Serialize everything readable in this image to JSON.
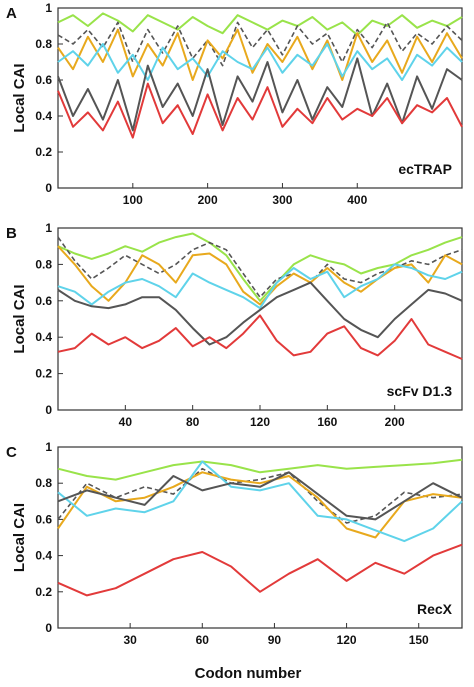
{
  "figure": {
    "ylabel": "Local CAI",
    "xlabel": "Codon number"
  },
  "chart_data": [
    {
      "type": "line",
      "panel": "A",
      "name": "ecTRAP",
      "xlim": [
        0,
        540
      ],
      "ylim": [
        0,
        1
      ],
      "xticks": [
        100,
        200,
        300,
        400
      ],
      "yticks": [
        0,
        0.2,
        0.4,
        0.6,
        0.8,
        1
      ],
      "ytick_labels": [
        "0",
        "0.2",
        "0.4",
        "0.6",
        "0.8",
        "1"
      ],
      "grid": false,
      "series": [
        {
          "color": "#99e34a",
          "dash": false,
          "x": [
            0,
            20,
            40,
            60,
            80,
            100,
            120,
            140,
            160,
            180,
            200,
            220,
            240,
            260,
            280,
            300,
            320,
            340,
            360,
            380,
            400,
            420,
            440,
            460,
            480,
            500,
            520,
            540
          ],
          "y": [
            0.92,
            0.96,
            0.9,
            0.97,
            0.93,
            0.87,
            0.96,
            0.92,
            0.88,
            0.95,
            0.9,
            0.86,
            0.96,
            0.92,
            0.88,
            0.93,
            0.9,
            0.95,
            0.88,
            0.92,
            0.85,
            0.93,
            0.9,
            0.96,
            0.89,
            0.93,
            0.9,
            0.95
          ]
        },
        {
          "color": "#555555",
          "dash": true,
          "x": [
            0,
            20,
            40,
            60,
            80,
            100,
            120,
            140,
            160,
            180,
            200,
            220,
            240,
            260,
            280,
            300,
            320,
            340,
            360,
            380,
            400,
            420,
            440,
            460,
            480,
            500,
            520,
            540
          ],
          "y": [
            0.85,
            0.8,
            0.88,
            0.78,
            0.92,
            0.7,
            0.88,
            0.75,
            0.9,
            0.72,
            0.82,
            0.68,
            0.92,
            0.78,
            0.88,
            0.74,
            0.9,
            0.8,
            0.86,
            0.7,
            0.88,
            0.78,
            0.92,
            0.76,
            0.86,
            0.8,
            0.9,
            0.82
          ]
        },
        {
          "color": "#e8a91d",
          "dash": false,
          "x": [
            0,
            20,
            40,
            60,
            80,
            100,
            120,
            140,
            160,
            180,
            200,
            220,
            240,
            260,
            280,
            300,
            320,
            340,
            360,
            380,
            400,
            420,
            440,
            460,
            480,
            500,
            520,
            540
          ],
          "y": [
            0.78,
            0.66,
            0.84,
            0.7,
            0.88,
            0.62,
            0.8,
            0.68,
            0.86,
            0.6,
            0.82,
            0.72,
            0.88,
            0.64,
            0.8,
            0.7,
            0.84,
            0.66,
            0.82,
            0.6,
            0.86,
            0.7,
            0.82,
            0.64,
            0.84,
            0.7,
            0.86,
            0.72
          ]
        },
        {
          "color": "#5fd3ea",
          "dash": false,
          "x": [
            0,
            20,
            40,
            60,
            80,
            100,
            120,
            140,
            160,
            180,
            200,
            220,
            240,
            260,
            280,
            300,
            320,
            340,
            360,
            380,
            400,
            420,
            440,
            460,
            480,
            500,
            520,
            540
          ],
          "y": [
            0.7,
            0.76,
            0.68,
            0.8,
            0.64,
            0.74,
            0.6,
            0.78,
            0.66,
            0.72,
            0.62,
            0.76,
            0.7,
            0.66,
            0.78,
            0.64,
            0.74,
            0.68,
            0.8,
            0.62,
            0.76,
            0.66,
            0.72,
            0.6,
            0.74,
            0.68,
            0.78,
            0.7
          ]
        },
        {
          "color": "#555555",
          "dash": false,
          "x": [
            0,
            20,
            40,
            60,
            80,
            100,
            120,
            140,
            160,
            180,
            200,
            220,
            240,
            260,
            280,
            300,
            320,
            340,
            360,
            380,
            400,
            420,
            440,
            460,
            480,
            500,
            520,
            540
          ],
          "y": [
            0.62,
            0.4,
            0.55,
            0.38,
            0.6,
            0.32,
            0.68,
            0.45,
            0.58,
            0.4,
            0.66,
            0.35,
            0.62,
            0.48,
            0.7,
            0.42,
            0.6,
            0.38,
            0.56,
            0.45,
            0.72,
            0.4,
            0.58,
            0.36,
            0.62,
            0.44,
            0.66,
            0.6
          ]
        },
        {
          "color": "#e23a3a",
          "dash": false,
          "x": [
            0,
            20,
            40,
            60,
            80,
            100,
            120,
            140,
            160,
            180,
            200,
            220,
            240,
            260,
            280,
            300,
            320,
            340,
            360,
            380,
            400,
            420,
            440,
            460,
            480,
            500,
            520,
            540
          ],
          "y": [
            0.54,
            0.34,
            0.42,
            0.32,
            0.48,
            0.28,
            0.58,
            0.36,
            0.46,
            0.3,
            0.52,
            0.32,
            0.5,
            0.38,
            0.56,
            0.34,
            0.44,
            0.36,
            0.5,
            0.38,
            0.44,
            0.4,
            0.5,
            0.36,
            0.46,
            0.42,
            0.5,
            0.34
          ]
        }
      ]
    },
    {
      "type": "line",
      "panel": "B",
      "name": "scFv D1.3",
      "xlim": [
        0,
        240
      ],
      "ylim": [
        0,
        1
      ],
      "xticks": [
        40,
        80,
        120,
        160,
        200
      ],
      "yticks": [
        0,
        0.2,
        0.4,
        0.6,
        0.8,
        1
      ],
      "ytick_labels": [
        "0",
        "0.2",
        "0.4",
        "0.6",
        "0.8",
        "1"
      ],
      "grid": false,
      "series": [
        {
          "color": "#99e34a",
          "dash": false,
          "x": [
            0,
            10,
            20,
            30,
            40,
            50,
            60,
            70,
            80,
            90,
            100,
            110,
            120,
            130,
            140,
            150,
            160,
            170,
            180,
            190,
            200,
            210,
            220,
            230,
            240
          ],
          "y": [
            0.9,
            0.86,
            0.83,
            0.86,
            0.9,
            0.87,
            0.92,
            0.95,
            0.97,
            0.92,
            0.85,
            0.72,
            0.6,
            0.7,
            0.8,
            0.85,
            0.82,
            0.8,
            0.75,
            0.78,
            0.8,
            0.85,
            0.88,
            0.92,
            0.95
          ]
        },
        {
          "color": "#555555",
          "dash": true,
          "x": [
            0,
            10,
            20,
            30,
            40,
            50,
            60,
            70,
            80,
            90,
            100,
            110,
            120,
            130,
            140,
            150,
            160,
            170,
            180,
            190,
            200,
            210,
            220,
            230,
            240
          ],
          "y": [
            0.95,
            0.82,
            0.72,
            0.78,
            0.85,
            0.8,
            0.75,
            0.8,
            0.88,
            0.92,
            0.88,
            0.75,
            0.62,
            0.72,
            0.75,
            0.7,
            0.8,
            0.72,
            0.7,
            0.75,
            0.78,
            0.82,
            0.8,
            0.85,
            0.88
          ]
        },
        {
          "color": "#e8a91d",
          "dash": false,
          "x": [
            0,
            10,
            20,
            30,
            40,
            50,
            60,
            70,
            80,
            90,
            100,
            110,
            120,
            130,
            140,
            150,
            160,
            170,
            180,
            190,
            200,
            210,
            220,
            230,
            240
          ],
          "y": [
            0.9,
            0.8,
            0.68,
            0.6,
            0.7,
            0.85,
            0.8,
            0.7,
            0.85,
            0.86,
            0.8,
            0.65,
            0.58,
            0.68,
            0.75,
            0.7,
            0.78,
            0.7,
            0.65,
            0.72,
            0.78,
            0.8,
            0.7,
            0.85,
            0.8
          ]
        },
        {
          "color": "#5fd3ea",
          "dash": false,
          "x": [
            0,
            10,
            20,
            30,
            40,
            50,
            60,
            70,
            80,
            90,
            100,
            110,
            120,
            130,
            140,
            150,
            160,
            170,
            180,
            190,
            200,
            210,
            220,
            230,
            240
          ],
          "y": [
            0.68,
            0.65,
            0.58,
            0.65,
            0.7,
            0.72,
            0.68,
            0.62,
            0.75,
            0.7,
            0.66,
            0.62,
            0.56,
            0.7,
            0.78,
            0.72,
            0.76,
            0.62,
            0.68,
            0.72,
            0.8,
            0.78,
            0.74,
            0.72,
            0.76
          ]
        },
        {
          "color": "#555555",
          "dash": false,
          "x": [
            0,
            10,
            20,
            30,
            40,
            50,
            60,
            70,
            80,
            90,
            100,
            110,
            120,
            130,
            140,
            150,
            160,
            170,
            180,
            190,
            200,
            210,
            220,
            230,
            240
          ],
          "y": [
            0.66,
            0.6,
            0.57,
            0.56,
            0.58,
            0.62,
            0.62,
            0.55,
            0.45,
            0.36,
            0.4,
            0.48,
            0.55,
            0.62,
            0.66,
            0.7,
            0.6,
            0.5,
            0.44,
            0.4,
            0.5,
            0.58,
            0.66,
            0.64,
            0.6
          ]
        },
        {
          "color": "#e23a3a",
          "dash": false,
          "x": [
            0,
            10,
            20,
            30,
            40,
            50,
            60,
            70,
            80,
            90,
            100,
            110,
            120,
            130,
            140,
            150,
            160,
            170,
            180,
            190,
            200,
            210,
            220,
            230,
            240
          ],
          "y": [
            0.32,
            0.34,
            0.42,
            0.36,
            0.4,
            0.34,
            0.38,
            0.45,
            0.35,
            0.4,
            0.34,
            0.42,
            0.52,
            0.38,
            0.3,
            0.32,
            0.42,
            0.46,
            0.34,
            0.3,
            0.38,
            0.5,
            0.36,
            0.32,
            0.28
          ]
        }
      ]
    },
    {
      "type": "line",
      "panel": "C",
      "name": "RecX",
      "xlim": [
        0,
        168
      ],
      "ylim": [
        0,
        1
      ],
      "xticks": [
        30,
        60,
        90,
        120,
        150
      ],
      "yticks": [
        0,
        0.2,
        0.4,
        0.6,
        0.8,
        1
      ],
      "ytick_labels": [
        "0",
        "0.2",
        "0.4",
        "0.6",
        "0.8",
        "1"
      ],
      "grid": false,
      "series": [
        {
          "color": "#99e34a",
          "dash": false,
          "x": [
            0,
            12,
            24,
            36,
            48,
            60,
            72,
            84,
            96,
            108,
            120,
            132,
            144,
            156,
            168
          ],
          "y": [
            0.88,
            0.84,
            0.82,
            0.86,
            0.9,
            0.92,
            0.9,
            0.86,
            0.88,
            0.9,
            0.88,
            0.89,
            0.9,
            0.91,
            0.93
          ]
        },
        {
          "color": "#555555",
          "dash": true,
          "x": [
            0,
            12,
            24,
            36,
            48,
            60,
            72,
            84,
            96,
            108,
            120,
            132,
            144,
            156,
            168
          ],
          "y": [
            0.6,
            0.8,
            0.72,
            0.78,
            0.74,
            0.88,
            0.8,
            0.82,
            0.86,
            0.7,
            0.58,
            0.62,
            0.75,
            0.72,
            0.74
          ]
        },
        {
          "color": "#e8a91d",
          "dash": false,
          "x": [
            0,
            12,
            24,
            36,
            48,
            60,
            72,
            84,
            96,
            108,
            120,
            132,
            144,
            156,
            168
          ],
          "y": [
            0.55,
            0.78,
            0.7,
            0.72,
            0.78,
            0.86,
            0.82,
            0.8,
            0.84,
            0.72,
            0.55,
            0.5,
            0.7,
            0.74,
            0.72
          ]
        },
        {
          "color": "#5fd3ea",
          "dash": false,
          "x": [
            0,
            12,
            24,
            36,
            48,
            60,
            72,
            84,
            96,
            108,
            120,
            132,
            144,
            156,
            168
          ],
          "y": [
            0.75,
            0.62,
            0.66,
            0.64,
            0.7,
            0.92,
            0.78,
            0.76,
            0.8,
            0.62,
            0.6,
            0.54,
            0.48,
            0.55,
            0.7
          ]
        },
        {
          "color": "#555555",
          "dash": false,
          "x": [
            0,
            12,
            24,
            36,
            48,
            60,
            72,
            84,
            96,
            108,
            120,
            132,
            144,
            156,
            168
          ],
          "y": [
            0.7,
            0.76,
            0.72,
            0.68,
            0.84,
            0.76,
            0.8,
            0.78,
            0.86,
            0.74,
            0.62,
            0.6,
            0.7,
            0.8,
            0.72
          ]
        },
        {
          "color": "#e23a3a",
          "dash": false,
          "x": [
            0,
            12,
            24,
            36,
            48,
            60,
            72,
            84,
            96,
            108,
            120,
            132,
            144,
            156,
            168
          ],
          "y": [
            0.25,
            0.18,
            0.22,
            0.3,
            0.38,
            0.42,
            0.34,
            0.2,
            0.3,
            0.38,
            0.26,
            0.36,
            0.3,
            0.4,
            0.46
          ]
        }
      ]
    }
  ]
}
